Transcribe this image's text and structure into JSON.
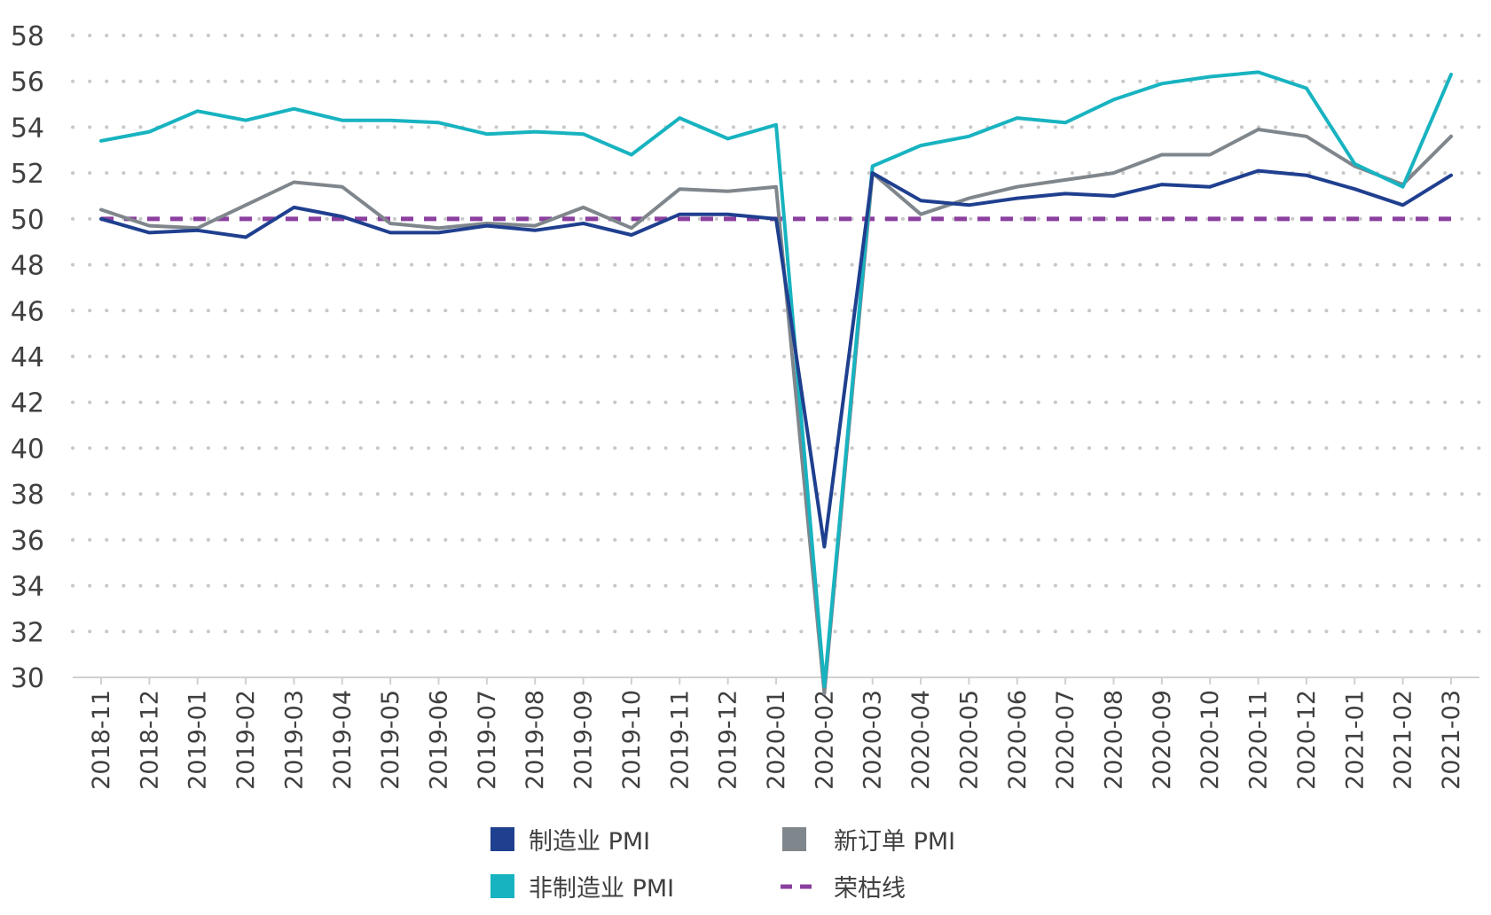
{
  "chart_data": {
    "type": "line",
    "title": "",
    "xlabel": "",
    "ylabel": "",
    "ylim": [
      30,
      58
    ],
    "yticks": [
      30,
      32,
      34,
      36,
      38,
      40,
      42,
      44,
      46,
      48,
      50,
      52,
      54,
      56,
      58
    ],
    "grid": "horizontal dotted",
    "legend_position": "bottom",
    "categories": [
      "2018-11",
      "2018-12",
      "2019-01",
      "2019-02",
      "2019-03",
      "2019-04",
      "2019-05",
      "2019-06",
      "2019-07",
      "2019-08",
      "2019-09",
      "2019-10",
      "2019-11",
      "2019-12",
      "2020-01",
      "2020-02",
      "2020-03",
      "2020-04",
      "2020-05",
      "2020-06",
      "2020-07",
      "2020-08",
      "2020-09",
      "2020-10",
      "2020-11",
      "2020-12",
      "2021-01",
      "2021-02",
      "2021-03"
    ],
    "series": [
      {
        "name": "制造业 PMI",
        "color": "#1f3f8f",
        "style": "solid",
        "values": [
          50.0,
          49.4,
          49.5,
          49.2,
          50.5,
          50.1,
          49.4,
          49.4,
          49.7,
          49.5,
          49.8,
          49.3,
          50.2,
          50.2,
          50.0,
          35.7,
          52.0,
          50.8,
          50.6,
          50.9,
          51.1,
          51.0,
          51.5,
          51.4,
          52.1,
          51.9,
          51.3,
          50.6,
          51.9
        ]
      },
      {
        "name": "新订单 PMI",
        "color": "#7f868c",
        "style": "solid",
        "values": [
          50.4,
          49.7,
          49.6,
          50.6,
          51.6,
          51.4,
          49.8,
          49.6,
          49.8,
          49.7,
          50.5,
          49.6,
          51.3,
          51.2,
          51.4,
          29.3,
          52.0,
          50.2,
          50.9,
          51.4,
          51.7,
          52.0,
          52.8,
          52.8,
          53.9,
          53.6,
          52.3,
          51.5,
          53.6
        ]
      },
      {
        "name": "非制造业 PMI",
        "color": "#18b3c0",
        "style": "solid",
        "values": [
          53.4,
          53.8,
          54.7,
          54.3,
          54.8,
          54.3,
          54.3,
          54.2,
          53.7,
          53.8,
          53.7,
          52.8,
          54.4,
          53.5,
          54.1,
          29.6,
          52.3,
          53.2,
          53.6,
          54.4,
          54.2,
          55.2,
          55.9,
          56.2,
          56.4,
          55.7,
          52.4,
          51.4,
          56.3
        ]
      },
      {
        "name": "荣枯线",
        "color": "#8b3f9f",
        "style": "dashed",
        "values": [
          50,
          50,
          50,
          50,
          50,
          50,
          50,
          50,
          50,
          50,
          50,
          50,
          50,
          50,
          50,
          50,
          50,
          50,
          50,
          50,
          50,
          50,
          50,
          50,
          50,
          50,
          50,
          50,
          50
        ]
      }
    ]
  },
  "legend": {
    "manufacturing": "制造业 PMI",
    "new_orders": "新订单 PMI",
    "non_manufacturing": "非制造业 PMI",
    "boom_bust": "荣枯线"
  }
}
